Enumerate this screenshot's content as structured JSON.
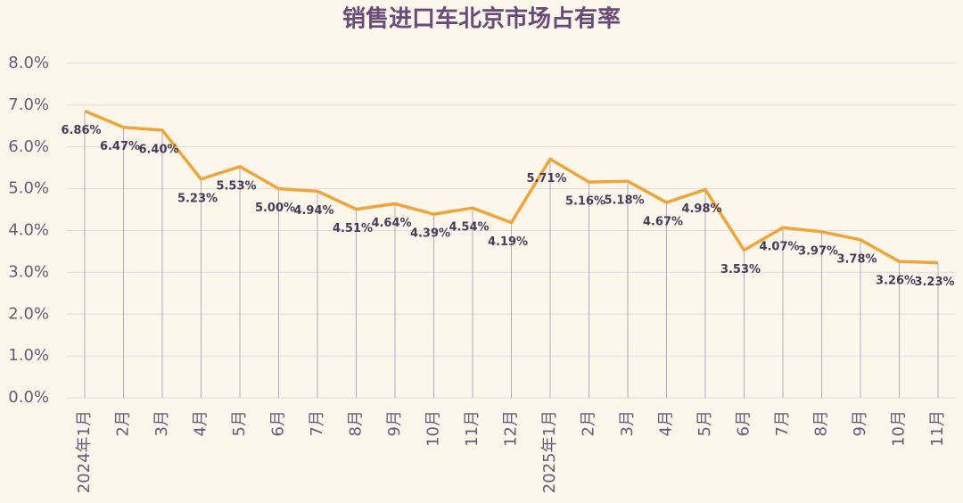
{
  "chart_data": {
    "type": "line",
    "title": "销售进口车北京市场占有率",
    "categories": [
      "2024年1月",
      "2月",
      "3月",
      "4月",
      "5月",
      "6月",
      "7月",
      "8月",
      "9月",
      "10月",
      "11月",
      "12月",
      "2025年1月",
      "2月",
      "3月",
      "4月",
      "5月",
      "6月",
      "7月",
      "8月",
      "9月",
      "10月",
      "11月"
    ],
    "values": [
      6.86,
      6.47,
      6.4,
      5.23,
      5.53,
      5.0,
      4.94,
      4.51,
      4.64,
      4.39,
      4.54,
      4.19,
      5.71,
      5.16,
      5.18,
      4.67,
      4.98,
      3.53,
      4.07,
      3.97,
      3.78,
      3.26,
      3.23
    ],
    "value_labels": [
      "6.86%",
      "6.47%",
      "6.40%",
      "5.23%",
      "5.53%",
      "5.00%",
      "4.94%",
      "4.51%",
      "4.64%",
      "4.39%",
      "4.54%",
      "4.19%",
      "5.71%",
      "5.16%",
      "5.18%",
      "4.67%",
      "4.98%",
      "3.53%",
      "4.07%",
      "3.97%",
      "3.78%",
      "3.26%",
      "3.23%"
    ],
    "color": "#f0a53c",
    "ylim": [
      0,
      8
    ],
    "yticks": [
      {
        "value": 0,
        "label": "0.0%"
      },
      {
        "value": 1,
        "label": "1.0%"
      },
      {
        "value": 2,
        "label": "2.0%"
      },
      {
        "value": 3,
        "label": "3.0%"
      },
      {
        "value": 4,
        "label": "4.0%"
      },
      {
        "value": 5,
        "label": "5.0%"
      },
      {
        "value": 6,
        "label": "6.0%"
      },
      {
        "value": 7,
        "label": "7.0%"
      },
      {
        "value": 8,
        "label": "8.0%"
      }
    ],
    "grid": true
  }
}
